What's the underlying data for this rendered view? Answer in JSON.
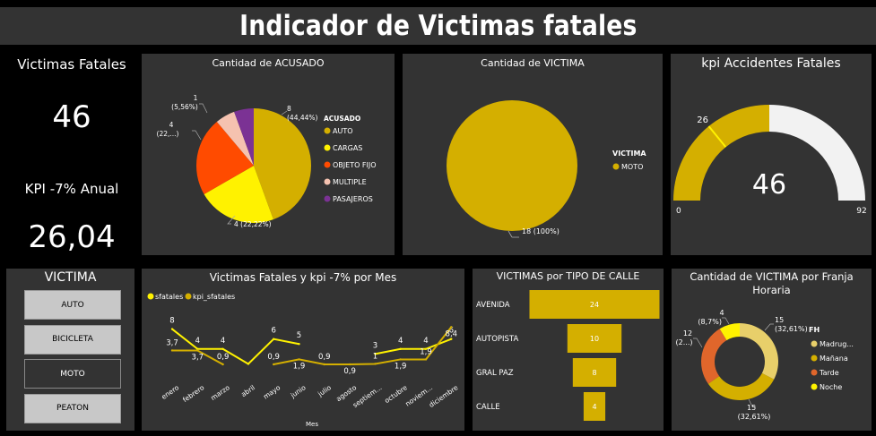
{
  "header": {
    "title": "Indicador de Victimas fatales"
  },
  "kpis": {
    "victimas_label": "Victimas Fatales",
    "victimas_value": "46",
    "kpi_label": "KPI -7% Anual",
    "kpi_value": "26,04"
  },
  "colors": {
    "gold": "#D4AF00",
    "yellow": "#FFF200",
    "orange_red": "#FF4B00",
    "peach": "#F5C2B0",
    "purple": "#7B3294",
    "panel": "#333333",
    "gauge_rest": "#F2F2F2",
    "sand": "#E8CF6A",
    "burnt": "#E0662B"
  },
  "acusado": {
    "title": "Cantidad de ACUSADO",
    "legend_title": "ACUSADO",
    "items": [
      {
        "name": "AUTO",
        "value": 8,
        "label_count": "8",
        "label_pct": "(44,44%)",
        "color": "#D4AF00"
      },
      {
        "name": "CARGAS",
        "value": 4,
        "label_count": "4 (22,22%)",
        "label_pct": "",
        "color": "#FFF200"
      },
      {
        "name": "OBJETO FIJO",
        "value": 4,
        "label_count": "4",
        "label_pct": "(22,...)",
        "color": "#FF4B00"
      },
      {
        "name": "MULTIPLE",
        "value": 1,
        "label_count": "1",
        "label_pct": "(5,56%)",
        "color": "#F5C2B0"
      },
      {
        "name": "PASAJEROS",
        "value": 1,
        "label_count": "",
        "label_pct": "",
        "color": "#7B3294"
      }
    ]
  },
  "victima_pie": {
    "title": "Cantidad de VICTIMA",
    "legend_title": "VICTIMA",
    "legend_item": "MOTO",
    "label": "18 (100%)"
  },
  "gauge": {
    "title": "kpi Accidentes Fatales",
    "value": 46,
    "value_label": "46",
    "min": 0,
    "max": 92,
    "min_label": "0",
    "max_label": "92",
    "target": 26,
    "target_label": "26"
  },
  "slicer": {
    "title": "VICTIMA",
    "items": [
      {
        "label": "AUTO",
        "selected": false
      },
      {
        "label": "BICICLETA",
        "selected": false
      },
      {
        "label": "MOTO",
        "selected": true
      },
      {
        "label": "PEATON",
        "selected": false
      }
    ]
  },
  "line_chart": {
    "title": "Victimas Fatales y kpi -7% por Mes",
    "legend": [
      "sfatales",
      "kpi_sfatales"
    ],
    "xlabel": "Mes"
  },
  "funnel": {
    "title": "VICTIMAS por TIPO DE CALLE",
    "items": [
      {
        "label": "AVENIDA",
        "value": 24,
        "value_label": "24"
      },
      {
        "label": "AUTOPISTA",
        "value": 10,
        "value_label": "10"
      },
      {
        "label": "GRAL PAZ",
        "value": 8,
        "value_label": "8"
      },
      {
        "label": "CALLE",
        "value": 4,
        "value_label": "4"
      }
    ]
  },
  "donut": {
    "title": "Cantidad de VICTIMA por Franja Horaria",
    "legend_title": "FH",
    "items": [
      {
        "name": "Madrug...",
        "value": 15,
        "label": "15",
        "pct": "(32,61%)",
        "color": "#E8CF6A"
      },
      {
        "name": "Mañana",
        "value": 15,
        "label": "15",
        "pct": "(32,61%)",
        "color": "#D4AF00"
      },
      {
        "name": "Tarde",
        "value": 12,
        "label": "12",
        "pct": "(2...)",
        "color": "#E0662B"
      },
      {
        "name": "Noche",
        "value": 4,
        "label": "4",
        "pct": "(8,7%)",
        "color": "#FFF200"
      }
    ]
  },
  "chart_data": {
    "type": "line",
    "title": "Victimas Fatales y kpi -7% por Mes",
    "xlabel": "Mes",
    "ylabel": "",
    "categories": [
      "enero",
      "febrero",
      "marzo",
      "abril",
      "mayo",
      "junio",
      "julio",
      "agosto",
      "septiem...",
      "octubre",
      "noviem...",
      "diciembre"
    ],
    "series": [
      {
        "name": "sfatales",
        "color": "#FFF200",
        "values": [
          8,
          4,
          4,
          1,
          6,
          5,
          null,
          null,
          3,
          4,
          4,
          6
        ]
      },
      {
        "name": "kpi_sfatales",
        "color": "#D4AF00",
        "values": [
          3.7,
          3.7,
          0.9,
          null,
          0.9,
          1.9,
          0.9,
          0.9,
          1,
          1.9,
          1.9,
          8.4
        ]
      }
    ],
    "point_labels": {
      "sfatales": [
        "8",
        "4",
        "4",
        "",
        "6",
        "5",
        "",
        "",
        "3",
        "4",
        "4",
        "6"
      ],
      "kpi_sfatales": [
        "3,7",
        "3,7",
        "0,9",
        "",
        "0,9",
        "1,9",
        "0,9",
        "0,9",
        "1",
        "1,9",
        "1,9",
        "8,4"
      ]
    },
    "ylim": [
      0,
      9
    ],
    "legend_position": "top-left"
  }
}
